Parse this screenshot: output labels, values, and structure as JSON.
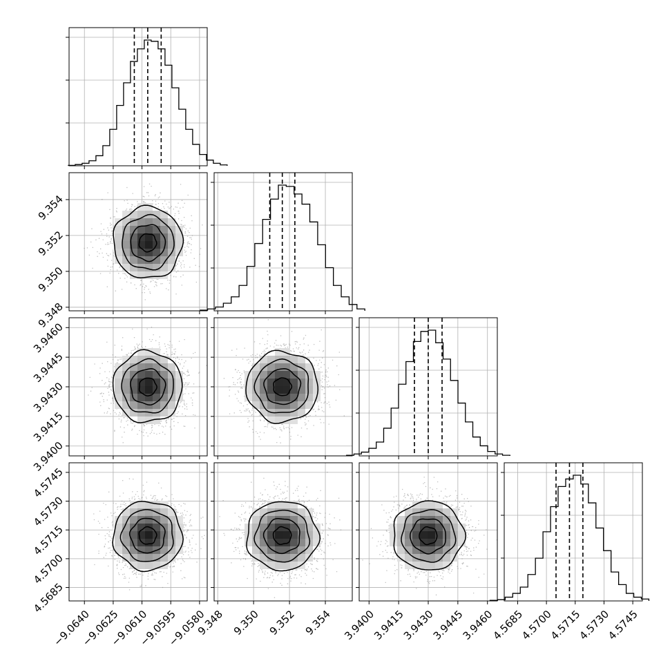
{
  "chart_data": {
    "type": "corner",
    "title": "",
    "parameters": [
      {
        "xlim": [
          -9.0648,
          -9.0576
        ],
        "ticks": [
          -9.064,
          -9.0625,
          -9.061,
          -9.0595,
          -9.058
        ],
        "tick_labels": [
          "−9.0640",
          "−9.0625",
          "−9.0610",
          "−9.0595",
          "−9.0580"
        ],
        "mean": -9.0607,
        "sigma": 0.0009,
        "quantiles": [
          -9.0614,
          -9.0607,
          -9.06
        ],
        "hist": [
          0.3,
          1,
          2,
          4,
          8,
          16,
          29,
          48,
          66,
          83,
          93,
          100,
          99,
          93,
          80,
          62,
          45,
          29,
          17,
          9,
          4.5,
          2,
          0.7
        ]
      },
      {
        "xlim": [
          9.3478,
          9.3555
        ],
        "ticks": [
          9.348,
          9.35,
          9.352,
          9.354
        ],
        "tick_labels": [
          "9.348",
          "9.350",
          "9.352",
          "9.354"
        ],
        "mean": 9.3516,
        "sigma": 0.001,
        "quantiles": [
          9.3509,
          9.3516,
          9.3523
        ],
        "hist": [
          0.5,
          1.5,
          3,
          6,
          11,
          20,
          35,
          53,
          72,
          88,
          99,
          98,
          92,
          84,
          70,
          52,
          34,
          20,
          11,
          5,
          1.5
        ]
      },
      {
        "xlim": [
          3.9395,
          3.9465
        ],
        "ticks": [
          3.94,
          3.9415,
          3.943,
          3.9445,
          3.946
        ],
        "tick_labels": [
          "3.9400",
          "3.9415",
          "3.9430",
          "3.9445",
          "3.9460"
        ],
        "mean": 3.943,
        "sigma": 0.0009,
        "quantiles": [
          3.9423,
          3.943,
          3.9437
        ],
        "hist": [
          0.5,
          1.5,
          3,
          6,
          11,
          22,
          38,
          57,
          75,
          91,
          99,
          100,
          90,
          77,
          60,
          42,
          27,
          15,
          8,
          3.5,
          1.5,
          0.5
        ]
      },
      {
        "xlim": [
          4.5678,
          4.575
        ],
        "ticks": [
          4.5685,
          4.57,
          4.5715,
          4.573,
          4.5745
        ],
        "tick_labels": [
          "4.5685",
          "4.5700",
          "4.5715",
          "4.5730",
          "4.5745"
        ],
        "mean": 4.5712,
        "sigma": 0.0009,
        "quantiles": [
          4.5705,
          4.5712,
          4.5719
        ],
        "hist": [
          0.5,
          1,
          3,
          6,
          11,
          21,
          34,
          55,
          75,
          91,
          97,
          100,
          93,
          78,
          58,
          40,
          23,
          13,
          6,
          3,
          1.5
        ]
      }
    ],
    "pairs": [
      {
        "row": 1,
        "col": 0,
        "peak": [
          -9.0606,
          9.3517
        ],
        "rho": 0.0
      },
      {
        "row": 2,
        "col": 0,
        "peak": [
          -9.0607,
          3.9431
        ],
        "rho": 0.0
      },
      {
        "row": 2,
        "col": 1,
        "peak": [
          9.3517,
          3.9431
        ],
        "rho": 0.0
      },
      {
        "row": 3,
        "col": 0,
        "peak": [
          -9.0607,
          4.5713
        ],
        "rho": 0.0
      },
      {
        "row": 3,
        "col": 1,
        "peak": [
          9.3516,
          4.5713
        ],
        "rho": 0.0
      },
      {
        "row": 3,
        "col": 2,
        "peak": [
          3.9431,
          4.571
        ],
        "rho": 0.0
      }
    ],
    "contour_levels": [
      0.5,
      1.0,
      1.5,
      2.0
    ],
    "grid": true,
    "colors": {
      "line": "#000000",
      "scatter": "#7f7f7f",
      "grid": "#b0b0b0"
    }
  }
}
